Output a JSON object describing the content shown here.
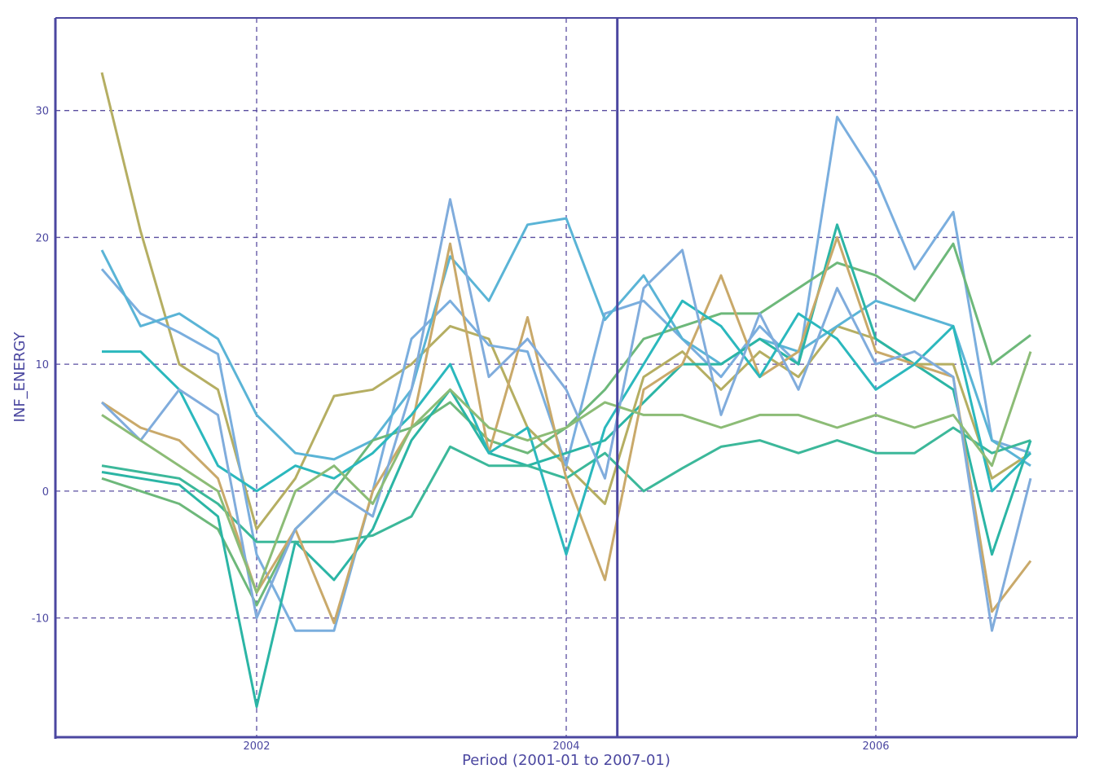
{
  "chart_data": {
    "type": "line",
    "title": "",
    "xlabel": "Period (2001-01 to 2007-01)",
    "ylabel": "INF_ENERGY",
    "xlim": [
      2000.7,
      2007.3
    ],
    "ylim": [
      -19.4,
      37.3
    ],
    "x_ticks": [
      2002,
      2004,
      2006
    ],
    "x_tick_labels": [
      "2002",
      "2004",
      "2006"
    ],
    "y_ticks": [
      -10,
      0,
      10,
      20,
      30
    ],
    "y_tick_labels": [
      "-10",
      "0",
      "10",
      "20",
      "30"
    ],
    "grid": true,
    "legend": "none",
    "vertical_marker_x": 2004.33,
    "x": [
      2001.0,
      2001.25,
      2001.5,
      2001.75,
      2002.0,
      2002.25,
      2002.5,
      2002.75,
      2003.0,
      2003.25,
      2003.5,
      2003.75,
      2004.0,
      2004.25,
      2004.5,
      2004.75,
      2005.0,
      2005.25,
      2005.5,
      2005.75,
      2006.0,
      2006.25,
      2006.5,
      2006.75,
      2007.0
    ],
    "series": [
      {
        "name": "s1",
        "color": "#b5ae62",
        "values": [
          33,
          20.5,
          10,
          8,
          -3,
          1,
          7.5,
          8,
          10,
          13,
          12,
          5,
          2,
          -1,
          9,
          11,
          8,
          11,
          9,
          13,
          12,
          10,
          10,
          1,
          3
        ]
      },
      {
        "name": "s2",
        "color": "#7aaede",
        "values": [
          17.5,
          14,
          12.5,
          10.8,
          -5,
          -11,
          -11,
          0,
          12,
          15,
          11.5,
          11,
          2,
          14,
          15,
          12,
          9,
          13,
          10,
          29.5,
          24.7,
          17.5,
          22,
          4,
          3
        ]
      },
      {
        "name": "s3",
        "color": "#5ab4d6",
        "values": [
          19,
          13,
          14,
          12,
          6,
          3,
          2.5,
          4,
          8,
          18.5,
          15,
          21,
          21.5,
          13.5,
          17,
          12,
          10,
          12,
          11,
          13,
          15,
          14,
          13,
          4,
          2
        ]
      },
      {
        "name": "s4",
        "color": "#6db87a",
        "values": [
          1,
          0,
          -1,
          -3,
          -9,
          -3,
          0,
          4,
          5,
          7,
          4,
          3,
          5,
          8,
          12,
          13,
          14,
          14,
          16,
          18,
          17,
          15,
          19.5,
          10,
          12.3
        ]
      },
      {
        "name": "s5",
        "color": "#2bb5a5",
        "values": [
          1.5,
          1,
          0.5,
          -2,
          -17,
          -4,
          -7,
          -3,
          4,
          8,
          3,
          2,
          3,
          4,
          7,
          10,
          10,
          12,
          10,
          21,
          12,
          10,
          8,
          -5,
          4
        ]
      },
      {
        "name": "s6",
        "color": "#3cb89a",
        "values": [
          2,
          1.5,
          1,
          -1,
          -4,
          -4,
          -4,
          -3.5,
          -2,
          3.5,
          2,
          2,
          1,
          3,
          0,
          1.8,
          3.5,
          4,
          3,
          4,
          3,
          3,
          5,
          3,
          4
        ]
      },
      {
        "name": "s7",
        "color": "#c9a96a",
        "values": [
          7,
          5,
          4,
          1,
          -8,
          -3,
          -10.4,
          0,
          5,
          19.5,
          3,
          13.7,
          1,
          -7,
          8,
          10,
          17,
          9,
          11,
          20,
          11,
          10,
          9,
          -9.5,
          -5.5
        ]
      },
      {
        "name": "s8",
        "color": "#2bb8bd",
        "values": [
          11,
          11,
          8,
          2,
          0,
          2,
          1,
          3,
          6,
          10,
          3,
          5,
          -5,
          5,
          10,
          15,
          13,
          9,
          14,
          12,
          8,
          10,
          13,
          0,
          3
        ]
      },
      {
        "name": "s9",
        "color": "#80acdc",
        "values": [
          7,
          4,
          8,
          6,
          -10,
          -3,
          0,
          -2,
          8,
          23,
          9,
          12,
          8,
          1,
          16,
          19,
          6,
          14,
          8,
          16,
          10,
          11,
          9,
          -11,
          1
        ]
      },
      {
        "name": "s10",
        "color": "#8cbc76",
        "values": [
          6,
          4,
          2,
          0,
          -8,
          0,
          2,
          -1,
          5,
          8,
          5,
          4,
          5,
          7,
          6,
          6,
          5,
          6,
          6,
          5,
          6,
          5,
          6,
          2,
          11
        ]
      }
    ],
    "colors": {
      "axis": "#4b47a0",
      "grid": "#5a4ea0"
    }
  }
}
